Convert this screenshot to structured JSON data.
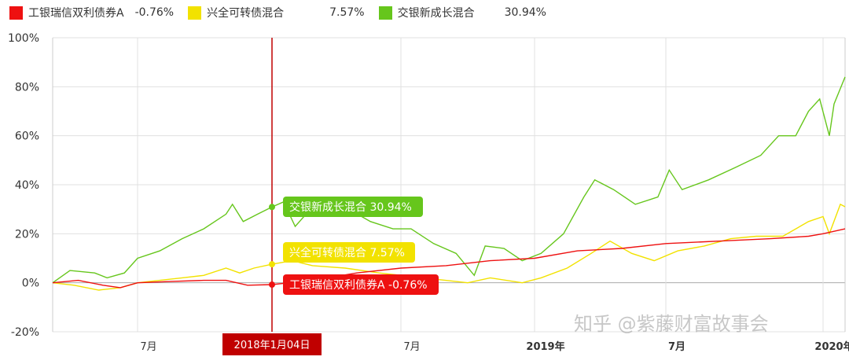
{
  "chart_data": {
    "type": "line",
    "ylim": [
      -20,
      100
    ],
    "yticks": [
      "100%",
      "80%",
      "60%",
      "40%",
      "20%",
      "0%",
      "-20%"
    ],
    "ytick_values": [
      100,
      80,
      60,
      40,
      20,
      0,
      -20
    ],
    "xticks": [
      {
        "date": "2017-07-01",
        "label": "7月",
        "bold": false
      },
      {
        "date": "2018-07-01",
        "label": "7月",
        "bold": false
      },
      {
        "date": "2019-01-01",
        "label": "2019年",
        "bold": true
      },
      {
        "date": "2019-07-01",
        "label": "7月",
        "bold": true
      },
      {
        "date": "2020-01-01",
        "label": "2020年",
        "bold": true
      }
    ],
    "grid": true,
    "legend_position": "top-left",
    "crosshair": {
      "date": "2018-01-04",
      "label": "2018年1月04日",
      "color": "#c00000"
    },
    "series": [
      {
        "name": "工银瑞信双利债券A",
        "legend_value": "-0.76%",
        "tooltip": "工银瑞信双利债券A -0.76%",
        "color": "#ee1111",
        "crosshair_value": -0.76,
        "points": [
          [
            "2017-03-20",
            0
          ],
          [
            "2017-04-20",
            1
          ],
          [
            "2017-05-20",
            -1
          ],
          [
            "2017-06-10",
            -2
          ],
          [
            "2017-07-01",
            0
          ],
          [
            "2017-08-15",
            0.5
          ],
          [
            "2017-10-01",
            1
          ],
          [
            "2017-11-01",
            1
          ],
          [
            "2017-12-01",
            -1
          ],
          [
            "2018-01-04",
            -0.76
          ],
          [
            "2018-03-01",
            1
          ],
          [
            "2018-05-01",
            4
          ],
          [
            "2018-07-01",
            6
          ],
          [
            "2018-09-01",
            7
          ],
          [
            "2018-11-01",
            9
          ],
          [
            "2019-01-01",
            10
          ],
          [
            "2019-03-01",
            13
          ],
          [
            "2019-05-01",
            14
          ],
          [
            "2019-07-01",
            16
          ],
          [
            "2019-09-01",
            17
          ],
          [
            "2019-11-01",
            18
          ],
          [
            "2019-12-15",
            19
          ],
          [
            "2020-01-01",
            20
          ],
          [
            "2020-01-15",
            22
          ]
        ]
      },
      {
        "name": "兴全可转债混合",
        "legend_value": "7.57%",
        "tooltip": "兴全可转债混合 7.57%",
        "color": "#f2e200",
        "crosshair_value": 7.57,
        "points": [
          [
            "2017-03-20",
            0
          ],
          [
            "2017-04-15",
            -1
          ],
          [
            "2017-05-15",
            -3
          ],
          [
            "2017-06-10",
            -2
          ],
          [
            "2017-07-01",
            0
          ],
          [
            "2017-08-01",
            1
          ],
          [
            "2017-09-01",
            2
          ],
          [
            "2017-10-01",
            3
          ],
          [
            "2017-11-01",
            6
          ],
          [
            "2017-11-20",
            4
          ],
          [
            "2017-12-10",
            6
          ],
          [
            "2018-01-04",
            7.57
          ],
          [
            "2018-02-01",
            9
          ],
          [
            "2018-03-01",
            7
          ],
          [
            "2018-04-15",
            6
          ],
          [
            "2018-06-01",
            4
          ],
          [
            "2018-08-01",
            2
          ],
          [
            "2018-10-01",
            0
          ],
          [
            "2018-11-01",
            2
          ],
          [
            "2018-12-15",
            0
          ],
          [
            "2019-01-10",
            2
          ],
          [
            "2019-02-15",
            6
          ],
          [
            "2019-03-20",
            12
          ],
          [
            "2019-04-15",
            17
          ],
          [
            "2019-05-15",
            12
          ],
          [
            "2019-06-15",
            9
          ],
          [
            "2019-07-15",
            13
          ],
          [
            "2019-08-15",
            15
          ],
          [
            "2019-09-15",
            18
          ],
          [
            "2019-10-15",
            19
          ],
          [
            "2019-11-15",
            19
          ],
          [
            "2019-12-15",
            25
          ],
          [
            "2020-01-01",
            27
          ],
          [
            "2020-01-05",
            20
          ],
          [
            "2020-01-12",
            32
          ],
          [
            "2020-01-15",
            31
          ]
        ]
      },
      {
        "name": "交银新成长混合",
        "legend_value": "30.94%",
        "tooltip": "交银新成长混合 30.94%",
        "color": "#66c61c",
        "crosshair_value": 30.94,
        "points": [
          [
            "2017-03-20",
            0
          ],
          [
            "2017-04-10",
            5
          ],
          [
            "2017-05-10",
            4
          ],
          [
            "2017-05-25",
            2
          ],
          [
            "2017-06-15",
            4
          ],
          [
            "2017-07-01",
            10
          ],
          [
            "2017-08-01",
            13
          ],
          [
            "2017-09-01",
            18
          ],
          [
            "2017-10-01",
            22
          ],
          [
            "2017-11-01",
            28
          ],
          [
            "2017-11-10",
            32
          ],
          [
            "2017-11-25",
            25
          ],
          [
            "2017-12-15",
            28
          ],
          [
            "2018-01-04",
            30.94
          ],
          [
            "2018-01-20",
            33
          ],
          [
            "2018-02-05",
            23
          ],
          [
            "2018-02-20",
            28
          ],
          [
            "2018-03-20",
            33
          ],
          [
            "2018-04-20",
            30
          ],
          [
            "2018-05-20",
            25
          ],
          [
            "2018-06-20",
            22
          ],
          [
            "2018-07-15",
            22
          ],
          [
            "2018-08-15",
            16
          ],
          [
            "2018-09-15",
            12
          ],
          [
            "2018-10-10",
            3
          ],
          [
            "2018-10-25",
            15
          ],
          [
            "2018-11-20",
            14
          ],
          [
            "2018-12-15",
            9
          ],
          [
            "2019-01-10",
            12
          ],
          [
            "2019-02-10",
            20
          ],
          [
            "2019-03-10",
            35
          ],
          [
            "2019-03-25",
            42
          ],
          [
            "2019-04-20",
            38
          ],
          [
            "2019-05-20",
            32
          ],
          [
            "2019-06-20",
            35
          ],
          [
            "2019-07-05",
            46
          ],
          [
            "2019-07-20",
            38
          ],
          [
            "2019-08-20",
            42
          ],
          [
            "2019-09-20",
            47
          ],
          [
            "2019-10-20",
            52
          ],
          [
            "2019-11-10",
            60
          ],
          [
            "2019-11-30",
            60
          ],
          [
            "2019-12-15",
            70
          ],
          [
            "2019-12-28",
            75
          ],
          [
            "2020-01-05",
            60
          ],
          [
            "2020-01-08",
            73
          ],
          [
            "2020-01-15",
            84
          ]
        ]
      }
    ]
  },
  "watermark": "知乎 @紫藤财富故事会"
}
